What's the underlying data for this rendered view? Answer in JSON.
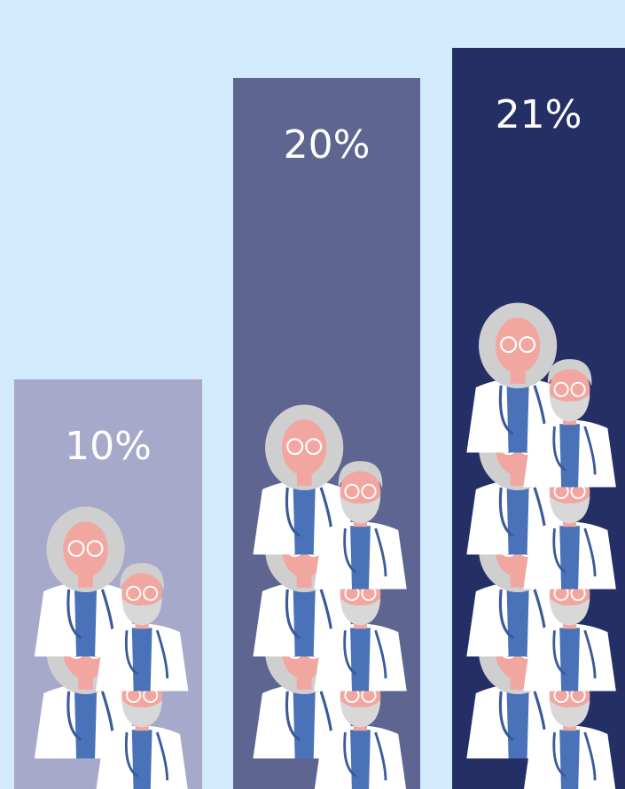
{
  "chart_data": {
    "type": "bar",
    "values": [
      10,
      20,
      21
    ],
    "value_labels": [
      "10%",
      "20%",
      "21%"
    ],
    "colors": [
      "#a7a9cb",
      "#5e6591",
      "#243065"
    ]
  }
}
